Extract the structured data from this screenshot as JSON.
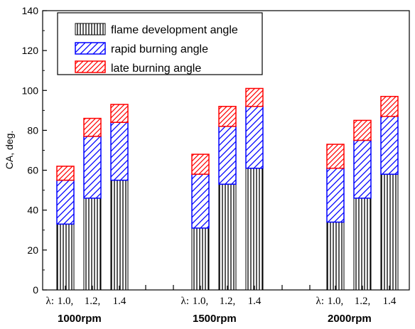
{
  "chart_data": {
    "type": "bar",
    "stacked": true,
    "ylabel": "CA, deg.",
    "ylim": [
      0,
      140
    ],
    "yticks": [
      0,
      20,
      40,
      60,
      80,
      100,
      120,
      140
    ],
    "lambda_prefix": "λ:",
    "groups": [
      {
        "label": "1000rpm",
        "ticks": [
          "1.0,",
          "1.2,",
          "1.4"
        ]
      },
      {
        "label": "1500rpm",
        "ticks": [
          "1.0,",
          "1.2,",
          "1.4"
        ]
      },
      {
        "label": "2000rpm",
        "ticks": [
          "1.0,",
          "1.2,",
          "1.4"
        ]
      }
    ],
    "series": [
      {
        "name": "flame development angle",
        "color": "#000000",
        "values": [
          33,
          46,
          55,
          31,
          53,
          61,
          34,
          46,
          58
        ]
      },
      {
        "name": "rapid burning angle",
        "color": "#0000ff",
        "values": [
          22,
          31,
          29,
          27,
          29,
          31,
          27,
          29,
          29
        ]
      },
      {
        "name": "late burning angle",
        "color": "#ff0000",
        "values": [
          7,
          9,
          9,
          10,
          10,
          9,
          12,
          10,
          10
        ]
      }
    ],
    "legend_position": "top-left",
    "grid": false
  }
}
